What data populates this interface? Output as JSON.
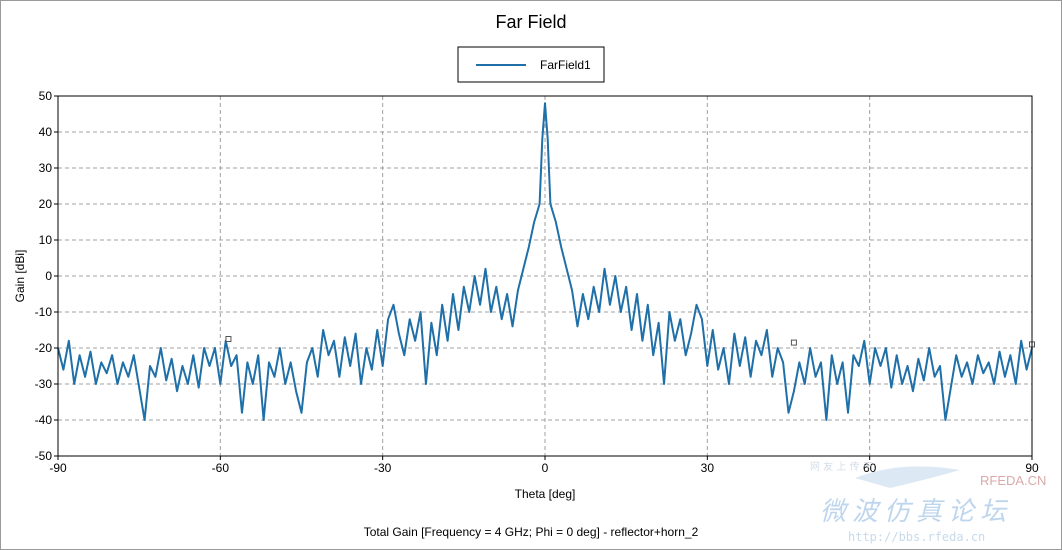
{
  "chart_data": {
    "type": "line",
    "title": "Far Field",
    "xlabel": "Theta [deg]",
    "ylabel": "Gain [dBi]",
    "xlim": [
      -90,
      90
    ],
    "ylim": [
      -50,
      50
    ],
    "x_ticks": [
      "-90",
      "-60",
      "-30",
      "0",
      "30",
      "60",
      "90"
    ],
    "y_ticks": [
      "50",
      "40",
      "30",
      "20",
      "10",
      "0",
      "-10",
      "-20",
      "-30",
      "-40",
      "-50"
    ],
    "grid": true,
    "legend_position": "top-center",
    "footer": "Total Gain [Frequency = 4 GHz; Phi = 0 deg] - reflector+horn_2",
    "series": [
      {
        "name": "FarField1",
        "color": "#1f6fa8",
        "points": [
          [
            -90,
            -20
          ],
          [
            -89,
            -26
          ],
          [
            -88,
            -18
          ],
          [
            -87,
            -30
          ],
          [
            -86,
            -22
          ],
          [
            -85,
            -28
          ],
          [
            -84,
            -21
          ],
          [
            -83,
            -30
          ],
          [
            -82,
            -24
          ],
          [
            -81,
            -27
          ],
          [
            -80,
            -22
          ],
          [
            -79,
            -30
          ],
          [
            -78,
            -24
          ],
          [
            -77,
            -28
          ],
          [
            -76,
            -22
          ],
          [
            -75,
            -31
          ],
          [
            -74,
            -40
          ],
          [
            -73,
            -25
          ],
          [
            -72,
            -28
          ],
          [
            -71,
            -20
          ],
          [
            -70,
            -29
          ],
          [
            -69,
            -23
          ],
          [
            -68,
            -32
          ],
          [
            -67,
            -25
          ],
          [
            -66,
            -30
          ],
          [
            -65,
            -22
          ],
          [
            -64,
            -31
          ],
          [
            -63,
            -20
          ],
          [
            -62,
            -25
          ],
          [
            -61,
            -20
          ],
          [
            -60,
            -30
          ],
          [
            -59,
            -18
          ],
          [
            -58,
            -25
          ],
          [
            -57,
            -22
          ],
          [
            -56,
            -38
          ],
          [
            -55,
            -24
          ],
          [
            -54,
            -30
          ],
          [
            -53,
            -22
          ],
          [
            -52,
            -40
          ],
          [
            -51,
            -24
          ],
          [
            -50,
            -28
          ],
          [
            -49,
            -20
          ],
          [
            -48,
            -30
          ],
          [
            -47,
            -24
          ],
          [
            -46,
            -32
          ],
          [
            -45,
            -38
          ],
          [
            -44,
            -24
          ],
          [
            -43,
            -20
          ],
          [
            -42,
            -28
          ],
          [
            -41,
            -15
          ],
          [
            -40,
            -22
          ],
          [
            -39,
            -18
          ],
          [
            -38,
            -28
          ],
          [
            -37,
            -17
          ],
          [
            -36,
            -25
          ],
          [
            -35,
            -16
          ],
          [
            -34,
            -30
          ],
          [
            -33,
            -20
          ],
          [
            -32,
            -26
          ],
          [
            -31,
            -15
          ],
          [
            -30,
            -25
          ],
          [
            -29,
            -12
          ],
          [
            -28,
            -8
          ],
          [
            -27,
            -16
          ],
          [
            -26,
            -22
          ],
          [
            -25,
            -12
          ],
          [
            -24,
            -18
          ],
          [
            -23,
            -10
          ],
          [
            -22,
            -30
          ],
          [
            -21,
            -13
          ],
          [
            -20,
            -22
          ],
          [
            -19,
            -8
          ],
          [
            -18,
            -18
          ],
          [
            -17,
            -5
          ],
          [
            -16,
            -15
          ],
          [
            -15,
            -3
          ],
          [
            -14,
            -10
          ],
          [
            -13,
            0
          ],
          [
            -12,
            -8
          ],
          [
            -11,
            2
          ],
          [
            -10,
            -10
          ],
          [
            -9,
            -3
          ],
          [
            -8,
            -12
          ],
          [
            -7,
            -5
          ],
          [
            -6,
            -14
          ],
          [
            -5,
            -4
          ],
          [
            -4,
            2
          ],
          [
            -3,
            8
          ],
          [
            -2,
            15
          ],
          [
            -1,
            20
          ],
          [
            -0.5,
            38
          ],
          [
            0,
            48
          ],
          [
            0.5,
            38
          ],
          [
            1,
            20
          ],
          [
            2,
            15
          ],
          [
            3,
            8
          ],
          [
            4,
            2
          ],
          [
            5,
            -4
          ],
          [
            6,
            -14
          ],
          [
            7,
            -5
          ],
          [
            8,
            -12
          ],
          [
            9,
            -3
          ],
          [
            10,
            -10
          ],
          [
            11,
            2
          ],
          [
            12,
            -8
          ],
          [
            13,
            0
          ],
          [
            14,
            -10
          ],
          [
            15,
            -3
          ],
          [
            16,
            -15
          ],
          [
            17,
            -5
          ],
          [
            18,
            -18
          ],
          [
            19,
            -8
          ],
          [
            20,
            -22
          ],
          [
            21,
            -13
          ],
          [
            22,
            -30
          ],
          [
            23,
            -10
          ],
          [
            24,
            -18
          ],
          [
            25,
            -12
          ],
          [
            26,
            -22
          ],
          [
            27,
            -16
          ],
          [
            28,
            -8
          ],
          [
            29,
            -12
          ],
          [
            30,
            -25
          ],
          [
            31,
            -15
          ],
          [
            32,
            -26
          ],
          [
            33,
            -20
          ],
          [
            34,
            -30
          ],
          [
            35,
            -16
          ],
          [
            36,
            -25
          ],
          [
            37,
            -17
          ],
          [
            38,
            -28
          ],
          [
            39,
            -18
          ],
          [
            40,
            -22
          ],
          [
            41,
            -15
          ],
          [
            42,
            -28
          ],
          [
            43,
            -20
          ],
          [
            44,
            -24
          ],
          [
            45,
            -38
          ],
          [
            46,
            -32
          ],
          [
            47,
            -24
          ],
          [
            48,
            -30
          ],
          [
            49,
            -20
          ],
          [
            50,
            -28
          ],
          [
            51,
            -24
          ],
          [
            52,
            -40
          ],
          [
            53,
            -22
          ],
          [
            54,
            -30
          ],
          [
            55,
            -24
          ],
          [
            56,
            -38
          ],
          [
            57,
            -22
          ],
          [
            58,
            -25
          ],
          [
            59,
            -18
          ],
          [
            60,
            -30
          ],
          [
            61,
            -20
          ],
          [
            62,
            -25
          ],
          [
            63,
            -20
          ],
          [
            64,
            -31
          ],
          [
            65,
            -22
          ],
          [
            66,
            -30
          ],
          [
            67,
            -25
          ],
          [
            68,
            -32
          ],
          [
            69,
            -23
          ],
          [
            70,
            -29
          ],
          [
            71,
            -20
          ],
          [
            72,
            -28
          ],
          [
            73,
            -25
          ],
          [
            74,
            -40
          ],
          [
            75,
            -31
          ],
          [
            76,
            -22
          ],
          [
            77,
            -28
          ],
          [
            78,
            -24
          ],
          [
            79,
            -30
          ],
          [
            80,
            -22
          ],
          [
            81,
            -27
          ],
          [
            82,
            -24
          ],
          [
            83,
            -30
          ],
          [
            84,
            -21
          ],
          [
            85,
            -28
          ],
          [
            86,
            -22
          ],
          [
            87,
            -30
          ],
          [
            88,
            -18
          ],
          [
            89,
            -26
          ],
          [
            90,
            -20
          ]
        ]
      }
    ],
    "markers": [
      [
        -58.5,
        -17.5
      ],
      [
        46,
        -18.5
      ],
      [
        90,
        -19
      ]
    ]
  },
  "watermark": {
    "chinese": "微波仿真论坛",
    "url": "http://bbs.rfeda.cn",
    "brand": "RFEDA.CN",
    "small": "网 友 上 传 于"
  }
}
